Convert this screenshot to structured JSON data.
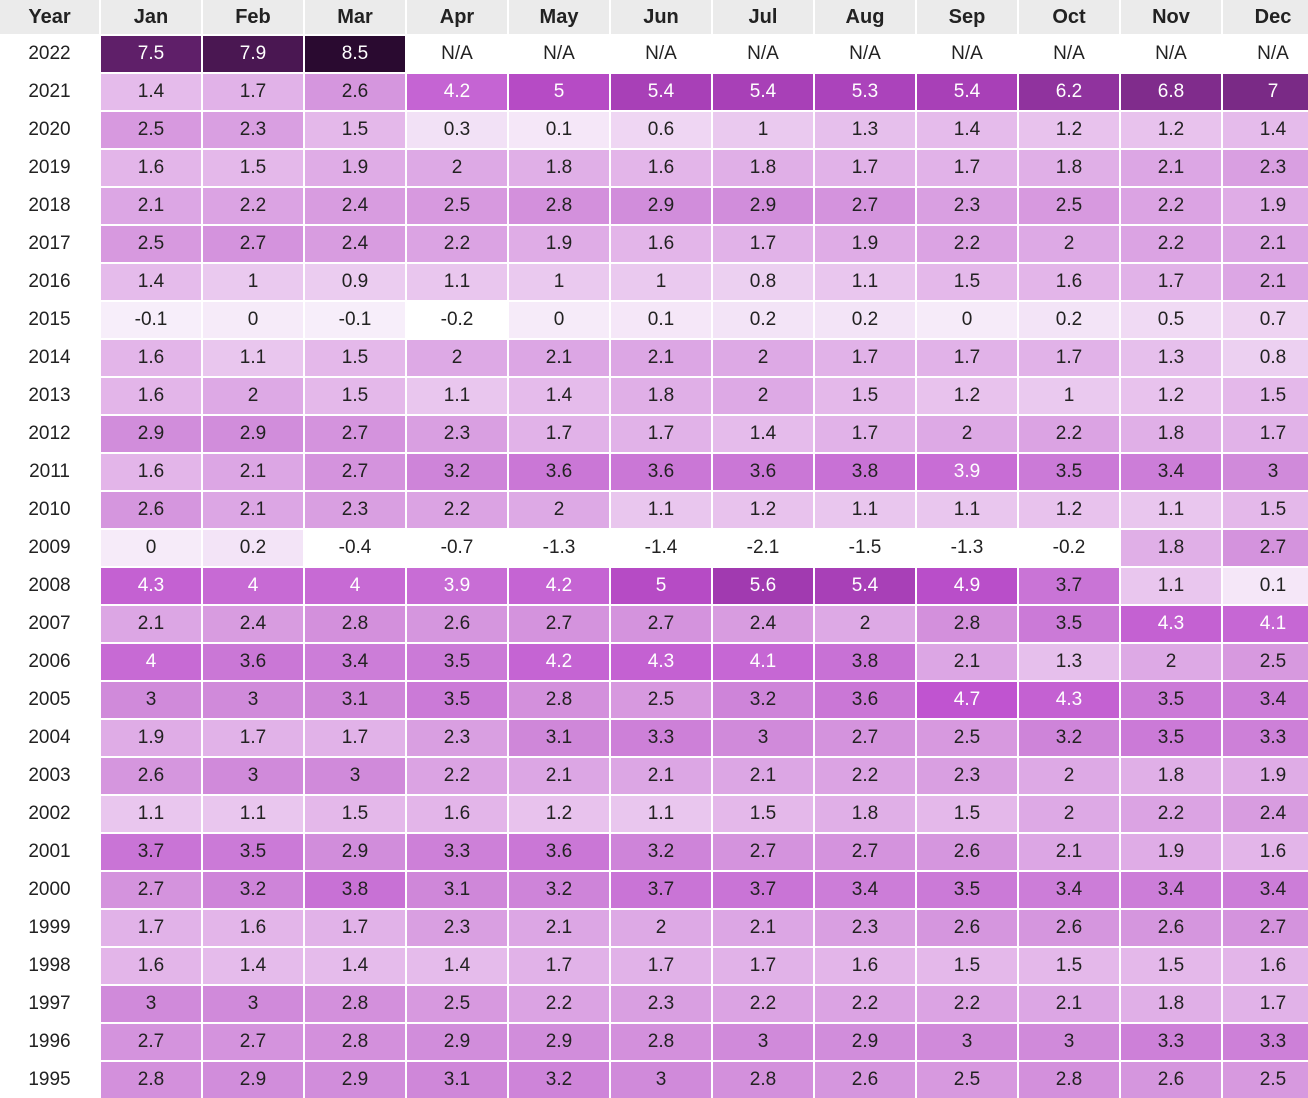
{
  "chart_data": {
    "type": "heatmap",
    "corner_label": "Year",
    "months": [
      "Jan",
      "Feb",
      "Mar",
      "Apr",
      "May",
      "Jun",
      "Jul",
      "Aug",
      "Sep",
      "Oct",
      "Nov",
      "Dec"
    ],
    "na_label": "N/A",
    "rows": [
      {
        "year": "2022",
        "values": [
          7.5,
          7.9,
          8.5,
          null,
          null,
          null,
          null,
          null,
          null,
          null,
          null,
          null
        ]
      },
      {
        "year": "2021",
        "values": [
          1.4,
          1.7,
          2.6,
          4.2,
          5,
          5.4,
          5.4,
          5.3,
          5.4,
          6.2,
          6.8,
          7
        ]
      },
      {
        "year": "2020",
        "values": [
          2.5,
          2.3,
          1.5,
          0.3,
          0.1,
          0.6,
          1,
          1.3,
          1.4,
          1.2,
          1.2,
          1.4
        ]
      },
      {
        "year": "2019",
        "values": [
          1.6,
          1.5,
          1.9,
          2,
          1.8,
          1.6,
          1.8,
          1.7,
          1.7,
          1.8,
          2.1,
          2.3
        ]
      },
      {
        "year": "2018",
        "values": [
          2.1,
          2.2,
          2.4,
          2.5,
          2.8,
          2.9,
          2.9,
          2.7,
          2.3,
          2.5,
          2.2,
          1.9
        ]
      },
      {
        "year": "2017",
        "values": [
          2.5,
          2.7,
          2.4,
          2.2,
          1.9,
          1.6,
          1.7,
          1.9,
          2.2,
          2,
          2.2,
          2.1
        ]
      },
      {
        "year": "2016",
        "values": [
          1.4,
          1,
          0.9,
          1.1,
          1,
          1,
          0.8,
          1.1,
          1.5,
          1.6,
          1.7,
          2.1
        ]
      },
      {
        "year": "2015",
        "values": [
          -0.1,
          0,
          -0.1,
          -0.2,
          0,
          0.1,
          0.2,
          0.2,
          0,
          0.2,
          0.5,
          0.7
        ]
      },
      {
        "year": "2014",
        "values": [
          1.6,
          1.1,
          1.5,
          2,
          2.1,
          2.1,
          2,
          1.7,
          1.7,
          1.7,
          1.3,
          0.8
        ]
      },
      {
        "year": "2013",
        "values": [
          1.6,
          2,
          1.5,
          1.1,
          1.4,
          1.8,
          2,
          1.5,
          1.2,
          1,
          1.2,
          1.5
        ]
      },
      {
        "year": "2012",
        "values": [
          2.9,
          2.9,
          2.7,
          2.3,
          1.7,
          1.7,
          1.4,
          1.7,
          2,
          2.2,
          1.8,
          1.7
        ]
      },
      {
        "year": "2011",
        "values": [
          1.6,
          2.1,
          2.7,
          3.2,
          3.6,
          3.6,
          3.6,
          3.8,
          3.9,
          3.5,
          3.4,
          3
        ]
      },
      {
        "year": "2010",
        "values": [
          2.6,
          2.1,
          2.3,
          2.2,
          2,
          1.1,
          1.2,
          1.1,
          1.1,
          1.2,
          1.1,
          1.5
        ]
      },
      {
        "year": "2009",
        "values": [
          0,
          0.2,
          -0.4,
          -0.7,
          -1.3,
          -1.4,
          -2.1,
          -1.5,
          -1.3,
          -0.2,
          1.8,
          2.7
        ]
      },
      {
        "year": "2008",
        "values": [
          4.3,
          4,
          4,
          3.9,
          4.2,
          5,
          5.6,
          5.4,
          4.9,
          3.7,
          1.1,
          0.1
        ]
      },
      {
        "year": "2007",
        "values": [
          2.1,
          2.4,
          2.8,
          2.6,
          2.7,
          2.7,
          2.4,
          2,
          2.8,
          3.5,
          4.3,
          4.1
        ]
      },
      {
        "year": "2006",
        "values": [
          4,
          3.6,
          3.4,
          3.5,
          4.2,
          4.3,
          4.1,
          3.8,
          2.1,
          1.3,
          2,
          2.5
        ]
      },
      {
        "year": "2005",
        "values": [
          3,
          3,
          3.1,
          3.5,
          2.8,
          2.5,
          3.2,
          3.6,
          4.7,
          4.3,
          3.5,
          3.4
        ]
      },
      {
        "year": "2004",
        "values": [
          1.9,
          1.7,
          1.7,
          2.3,
          3.1,
          3.3,
          3,
          2.7,
          2.5,
          3.2,
          3.5,
          3.3
        ]
      },
      {
        "year": "2003",
        "values": [
          2.6,
          3,
          3,
          2.2,
          2.1,
          2.1,
          2.1,
          2.2,
          2.3,
          2,
          1.8,
          1.9
        ]
      },
      {
        "year": "2002",
        "values": [
          1.1,
          1.1,
          1.5,
          1.6,
          1.2,
          1.1,
          1.5,
          1.8,
          1.5,
          2,
          2.2,
          2.4
        ]
      },
      {
        "year": "2001",
        "values": [
          3.7,
          3.5,
          2.9,
          3.3,
          3.6,
          3.2,
          2.7,
          2.7,
          2.6,
          2.1,
          1.9,
          1.6
        ]
      },
      {
        "year": "2000",
        "values": [
          2.7,
          3.2,
          3.8,
          3.1,
          3.2,
          3.7,
          3.7,
          3.4,
          3.5,
          3.4,
          3.4,
          3.4
        ]
      },
      {
        "year": "1999",
        "values": [
          1.7,
          1.6,
          1.7,
          2.3,
          2.1,
          2,
          2.1,
          2.3,
          2.6,
          2.6,
          2.6,
          2.7
        ]
      },
      {
        "year": "1998",
        "values": [
          1.6,
          1.4,
          1.4,
          1.4,
          1.7,
          1.7,
          1.7,
          1.6,
          1.5,
          1.5,
          1.5,
          1.6
        ]
      },
      {
        "year": "1997",
        "values": [
          3,
          3,
          2.8,
          2.5,
          2.2,
          2.3,
          2.2,
          2.2,
          2.2,
          2.1,
          1.8,
          1.7
        ]
      },
      {
        "year": "1996",
        "values": [
          2.7,
          2.7,
          2.8,
          2.9,
          2.9,
          2.8,
          3,
          2.9,
          3,
          3,
          3.3,
          3.3
        ]
      },
      {
        "year": "1995",
        "values": [
          2.8,
          2.9,
          2.9,
          3.1,
          3.2,
          3,
          2.8,
          2.6,
          2.5,
          2.8,
          2.6,
          2.5
        ]
      }
    ],
    "color_scale": {
      "stops": [
        {
          "value": -0.1,
          "color": "#f7eefa"
        },
        {
          "value": 1.5,
          "color": "#e4b8ea"
        },
        {
          "value": 3.0,
          "color": "#d08ada"
        },
        {
          "value": 4.7,
          "color": "#c054d0"
        },
        {
          "value": 5.6,
          "color": "#a13ab0"
        },
        {
          "value": 7.0,
          "color": "#7a2a86"
        },
        {
          "value": 8.5,
          "color": "#2a0a30"
        }
      ],
      "below_min_color": "#ffffff",
      "na_color": "#ffffff",
      "light_text_color": "#ffffff",
      "dark_text_color": "#222222",
      "light_text_threshold": 3.9
    },
    "header_bg": "#ebebeb"
  }
}
